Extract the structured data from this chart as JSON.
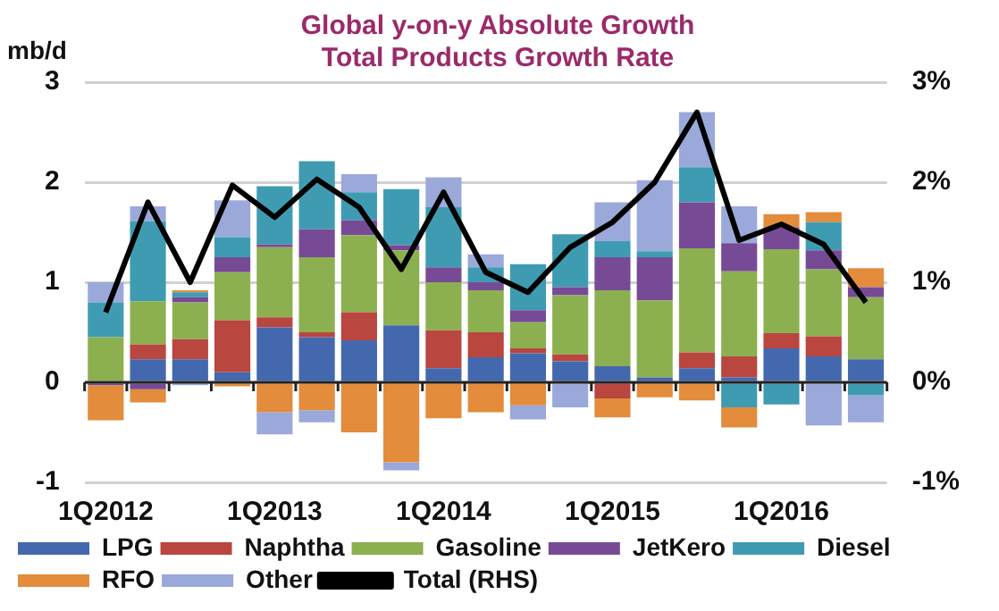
{
  "chart_data": {
    "type": "bar",
    "title": "Global y-on-y Absolute Growth",
    "subtitle": "Total Products Growth Rate",
    "ylabel": "mb/d",
    "stacked": true,
    "categories": [
      "1Q2012",
      null,
      null,
      null,
      "1Q2013",
      null,
      null,
      null,
      "1Q2014",
      null,
      null,
      null,
      "1Q2015",
      null,
      null,
      null,
      "1Q2016",
      null,
      null
    ],
    "series": [
      {
        "name": "LPG",
        "color": "#4468ae",
        "values": [
          0,
          0.23,
          0.23,
          0.1,
          0.55,
          0.45,
          0.42,
          0.57,
          0.14,
          0.25,
          0.29,
          0.21,
          0.16,
          0.05,
          0.14,
          0.05,
          0.34,
          0.26,
          0.23
        ]
      },
      {
        "name": "Naphtha",
        "color": "#b9463f",
        "values": [
          0,
          0.15,
          0.2,
          0.52,
          0.1,
          0.05,
          0.28,
          null,
          0.38,
          0.25,
          0.05,
          0.07,
          -0.16,
          0,
          0.16,
          0.21,
          0.15,
          0.2,
          0
        ]
      },
      {
        "name": "Gasoline",
        "color": "#8cb050",
        "values": [
          0.45,
          0.43,
          0.37,
          0.48,
          0.7,
          0.75,
          0.77,
          0.75,
          0.48,
          0.42,
          0.26,
          0.59,
          0.76,
          0.77,
          1.04,
          0.85,
          0.84,
          0.67,
          0.62
        ]
      },
      {
        "name": "JetKero",
        "color": "#774a96",
        "values": [
          -0.03,
          -0.07,
          0.05,
          0.15,
          0.03,
          0.28,
          0.15,
          0.05,
          0.15,
          0.08,
          0.12,
          0.08,
          0.33,
          0.43,
          0.46,
          0.28,
          0.22,
          0.19,
          0.1
        ]
      },
      {
        "name": "Diesel",
        "color": "#3f9bb2",
        "values": [
          0.35,
          0.8,
          0.05,
          0.2,
          0.58,
          0.68,
          0.28,
          0.56,
          0.6,
          0.15,
          0.46,
          0.53,
          0.16,
          0.06,
          0.35,
          -0.25,
          -0.22,
          0.28,
          -0.13
        ]
      },
      {
        "name": "RFO",
        "color": "#e28c3c",
        "values": [
          -0.35,
          -0.13,
          0.02,
          -0.04,
          -0.3,
          -0.28,
          -0.5,
          -0.8,
          -0.36,
          -0.3,
          -0.23,
          0,
          -0.19,
          -0.15,
          -0.18,
          -0.2,
          0.13,
          0.1,
          0.19
        ]
      },
      {
        "name": "Other",
        "color": "#9aa9da",
        "values": [
          0.2,
          0.15,
          -0.03,
          0.37,
          -0.22,
          -0.12,
          0.18,
          -0.08,
          0.3,
          0.13,
          -0.14,
          -0.25,
          0.39,
          0.71,
          0.55,
          0.37,
          0,
          -0.43,
          -0.27
        ]
      },
      {
        "name": "Total (RHS)",
        "type": "line",
        "axis": "y2",
        "color": "#000000",
        "values": [
          0.7,
          1.8,
          1.0,
          1.97,
          1.65,
          2.03,
          1.75,
          1.13,
          1.9,
          1.1,
          0.9,
          1.35,
          1.6,
          2.0,
          2.7,
          1.42,
          1.58,
          1.38,
          0.8
        ]
      }
    ],
    "ylim": [
      -1,
      3
    ],
    "yticks": [
      -1,
      0,
      1,
      2,
      3
    ],
    "y2lim": [
      -1,
      3
    ],
    "y2ticks": [
      {
        "value": -1,
        "label": "-1%"
      },
      {
        "value": 0,
        "label": "0%"
      },
      {
        "value": 1,
        "label": "1%"
      },
      {
        "value": 2,
        "label": "2%"
      },
      {
        "value": 3,
        "label": "3%"
      }
    ],
    "grid": "y",
    "legend": "bottom",
    "marker": "none",
    "line_style": "solid"
  }
}
